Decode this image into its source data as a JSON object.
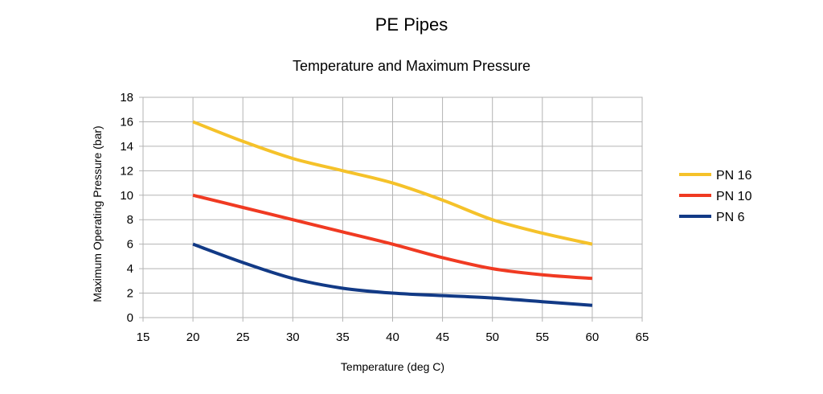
{
  "chart_data": {
    "type": "line",
    "title": "PE Pipes",
    "subtitle": "Temperature and Maximum Pressure",
    "xlabel": "Temperature (deg C)",
    "ylabel": "Maximum Operating Pressure (bar)",
    "xlim": [
      15,
      65
    ],
    "ylim": [
      0,
      18
    ],
    "x_ticks": [
      15,
      20,
      25,
      30,
      35,
      40,
      45,
      50,
      55,
      60,
      65
    ],
    "y_ticks": [
      0,
      2,
      4,
      6,
      8,
      10,
      12,
      14,
      16,
      18
    ],
    "grid": true,
    "legend_position": "right",
    "series": [
      {
        "name": "PN 16",
        "color": "#f5c22a",
        "x": [
          20,
          25,
          30,
          35,
          40,
          45,
          50,
          55,
          60
        ],
        "y": [
          16,
          14.4,
          13,
          12,
          11,
          9.6,
          8,
          6.9,
          6
        ]
      },
      {
        "name": "PN 10",
        "color": "#f03a22",
        "x": [
          20,
          25,
          30,
          35,
          40,
          45,
          50,
          55,
          60
        ],
        "y": [
          10,
          9,
          8,
          7,
          6,
          4.9,
          4,
          3.5,
          3.2
        ]
      },
      {
        "name": "PN 6",
        "color": "#123a86",
        "x": [
          20,
          25,
          30,
          35,
          40,
          45,
          50,
          55,
          60
        ],
        "y": [
          6,
          4.5,
          3.2,
          2.4,
          2,
          1.8,
          1.6,
          1.3,
          1
        ]
      }
    ]
  }
}
